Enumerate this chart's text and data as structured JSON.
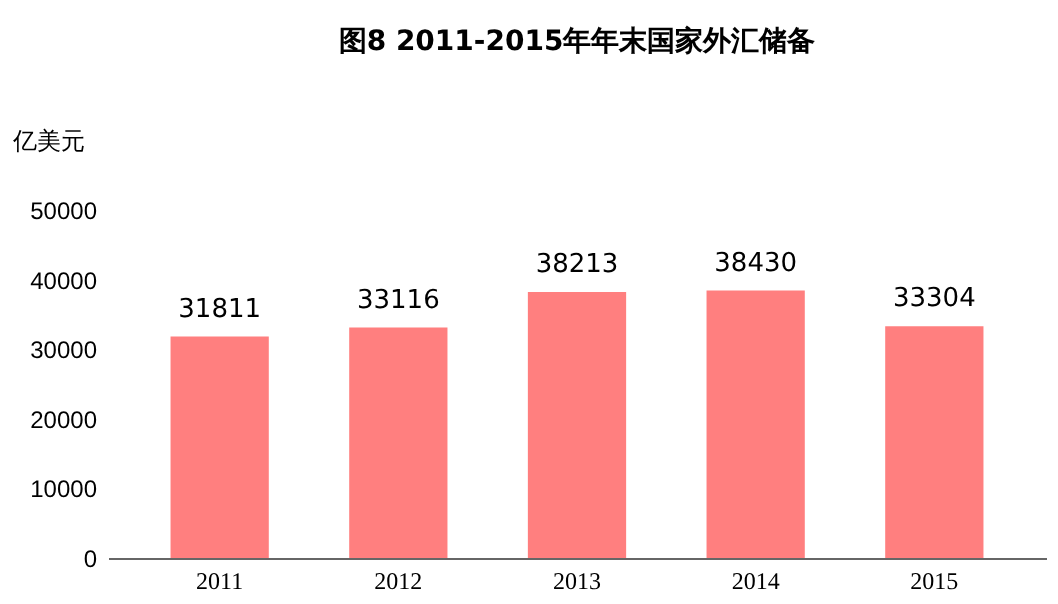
{
  "chart_data": {
    "type": "bar",
    "title": "图8   2011-2015年年末国家外汇储备",
    "ylabel": "亿美元",
    "categories": [
      "2011",
      "2012",
      "2013",
      "2014",
      "2015"
    ],
    "values": [
      31811,
      33116,
      38213,
      38430,
      33304
    ],
    "color": "#ff7f7f",
    "ylim": [
      0,
      50000
    ],
    "yticks": [
      0,
      10000,
      20000,
      30000,
      40000,
      50000
    ],
    "grid": false,
    "data_labels": true
  }
}
